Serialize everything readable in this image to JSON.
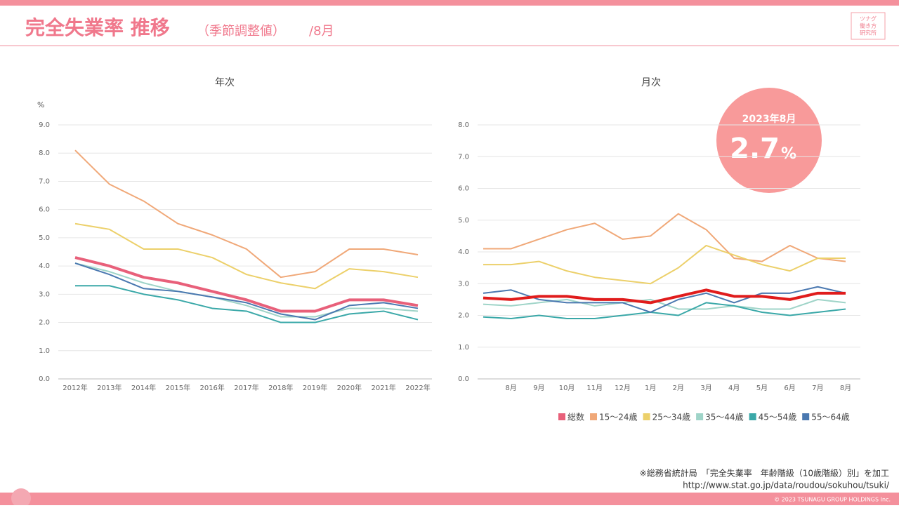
{
  "header": {
    "title": "完全失業率 推移",
    "subtitle": "（季節調整値）",
    "period": "/8月"
  },
  "logo": [
    "ツナグ",
    "働き方",
    "研究所"
  ],
  "callout": {
    "date": "2023年8月",
    "value": "2.7",
    "unit": "%"
  },
  "source": {
    "note": "※総務省統計局　「完全失業率　年齢階級（10歳階級）別」を加工",
    "url": "http://www.stat.go.jp/data/roudou/sokuhou/tsuki/"
  },
  "copyright": "© 2023 TSUNAGU GROUP HOLDINGS Inc.",
  "chart_data": [
    {
      "type": "line",
      "title": "年次",
      "ylabel": "%",
      "categories": [
        "2012年",
        "2013年",
        "2014年",
        "2015年",
        "2016年",
        "2017年",
        "2018年",
        "2019年",
        "2020年",
        "2021年",
        "2022年"
      ],
      "ylim": [
        0,
        9
      ],
      "yticks": [
        {
          "value": 0,
          "label": "0.0"
        },
        {
          "value": 1,
          "label": "1.0"
        },
        {
          "value": 2,
          "label": "2.0"
        },
        {
          "value": 3,
          "label": "3.0"
        },
        {
          "value": 4,
          "label": "4.0"
        },
        {
          "value": 5,
          "label": "5.0"
        },
        {
          "value": 6,
          "label": "6.0"
        },
        {
          "value": 7,
          "label": "7.0"
        },
        {
          "value": 8,
          "label": "8.0"
        },
        {
          "value": 9,
          "label": "9.0"
        }
      ],
      "grid": true,
      "legend": false,
      "series": [
        {
          "name": "15～24歳",
          "color": "#f0a878",
          "values": [
            8.1,
            6.9,
            6.3,
            5.5,
            5.1,
            4.6,
            3.6,
            3.8,
            4.6,
            4.6,
            4.4
          ]
        },
        {
          "name": "25～34歳",
          "color": "#ecd06a",
          "values": [
            5.5,
            5.3,
            4.6,
            4.6,
            4.3,
            3.7,
            3.4,
            3.2,
            3.9,
            3.8,
            3.6
          ]
        },
        {
          "name": "35～44歳",
          "color": "#9fd4c8",
          "values": [
            4.1,
            3.8,
            3.4,
            3.1,
            2.9,
            2.6,
            2.2,
            2.2,
            2.5,
            2.5,
            2.4
          ]
        },
        {
          "name": "45～54歳",
          "color": "#3aa8a8",
          "values": [
            3.3,
            3.3,
            3.0,
            2.8,
            2.5,
            2.4,
            2.0,
            2.0,
            2.3,
            2.4,
            2.1
          ]
        },
        {
          "name": "55～64歳",
          "color": "#4a78b0",
          "values": [
            4.1,
            3.7,
            3.2,
            3.1,
            2.9,
            2.7,
            2.3,
            2.1,
            2.6,
            2.7,
            2.5
          ]
        },
        {
          "name": "総数",
          "color": "#e8607a",
          "values": [
            4.3,
            4.0,
            3.6,
            3.4,
            3.1,
            2.8,
            2.4,
            2.4,
            2.8,
            2.8,
            2.6
          ]
        }
      ]
    },
    {
      "type": "line",
      "title": "月次",
      "categories": [
        null,
        "8月",
        "9月",
        "10月",
        "11月",
        "12月",
        "1月",
        "2月",
        "3月",
        "4月",
        "5月",
        "6月",
        "7月",
        "8月"
      ],
      "ylim": [
        0,
        8
      ],
      "yticks": [
        {
          "value": 0,
          "label": "0.0"
        },
        {
          "value": 1,
          "label": "1.0"
        },
        {
          "value": 2,
          "label": "2.0"
        },
        {
          "value": 3,
          "label": "3.0"
        },
        {
          "value": 4,
          "label": "4.0"
        },
        {
          "value": 5,
          "label": "5.0"
        },
        {
          "value": 6,
          "label": "6.0"
        },
        {
          "value": 7,
          "label": "7.0"
        },
        {
          "value": 8,
          "label": "8.0"
        }
      ],
      "grid": true,
      "legend": true,
      "series": [
        {
          "name": "15～24歳",
          "color": "#f0a878",
          "values": [
            4.1,
            4.1,
            4.4,
            4.7,
            4.9,
            4.4,
            4.5,
            5.2,
            4.7,
            3.8,
            3.7,
            4.2,
            3.8,
            3.7
          ]
        },
        {
          "name": "25～34歳",
          "color": "#ecd06a",
          "values": [
            3.6,
            3.6,
            3.7,
            3.4,
            3.2,
            3.1,
            3.0,
            3.5,
            4.2,
            3.9,
            3.6,
            3.4,
            3.8,
            3.8
          ]
        },
        {
          "name": "35～44歳",
          "color": "#9fd4c8",
          "values": [
            2.35,
            2.3,
            2.4,
            2.5,
            2.3,
            2.4,
            2.5,
            2.2,
            2.2,
            2.3,
            2.2,
            2.2,
            2.5,
            2.4
          ]
        },
        {
          "name": "45～54歳",
          "color": "#3aa8a8",
          "values": [
            1.95,
            1.9,
            2.0,
            1.9,
            1.9,
            2.0,
            2.1,
            2.0,
            2.4,
            2.3,
            2.1,
            2.0,
            2.1,
            2.2
          ]
        },
        {
          "name": "55～64歳",
          "color": "#4a78b0",
          "values": [
            2.7,
            2.8,
            2.5,
            2.4,
            2.4,
            2.4,
            2.1,
            2.5,
            2.7,
            2.4,
            2.7,
            2.7,
            2.9,
            2.7
          ]
        },
        {
          "name": "総数",
          "color": "#e01c1c",
          "legend_color": "#e8607a",
          "values": [
            2.55,
            2.5,
            2.6,
            2.6,
            2.5,
            2.5,
            2.4,
            2.6,
            2.8,
            2.6,
            2.6,
            2.5,
            2.7,
            2.7
          ]
        }
      ]
    }
  ]
}
